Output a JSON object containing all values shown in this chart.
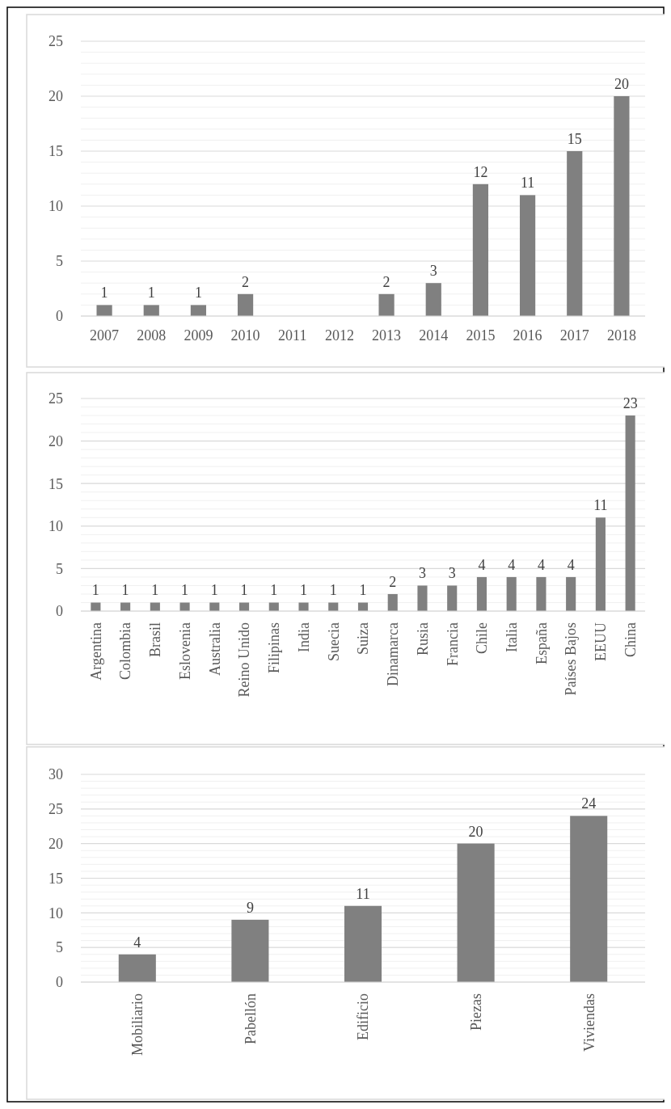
{
  "chart_data": [
    {
      "type": "bar",
      "categories": [
        "2007",
        "2008",
        "2009",
        "2010",
        "2011",
        "2012",
        "2013",
        "2014",
        "2015",
        "2016",
        "2017",
        "2018"
      ],
      "values": [
        1,
        1,
        1,
        2,
        0,
        0,
        2,
        3,
        12,
        11,
        15,
        20
      ],
      "value_labels": [
        "1",
        "1",
        "1",
        "2",
        null,
        null,
        "2",
        "3",
        "12",
        "11",
        "15",
        "20"
      ],
      "color": "#808080",
      "ylim": [
        0,
        25
      ],
      "yticks": [
        0,
        5,
        10,
        15,
        20,
        25
      ],
      "grid": "y"
    },
    {
      "type": "bar",
      "categories": [
        "Argentina",
        "Colombia",
        "Brasil",
        "Eslovenia",
        "Australia",
        "Reino Unido",
        "Filipinas",
        "India",
        "Suecia",
        "Suiza",
        "Dinamarca",
        "Rusia",
        "Francia",
        "Chile",
        "Italia",
        "España",
        "Países Bajos",
        "EEUU",
        "China"
      ],
      "values": [
        1,
        1,
        1,
        1,
        1,
        1,
        1,
        1,
        1,
        1,
        2,
        3,
        3,
        4,
        4,
        4,
        4,
        11,
        23
      ],
      "data_labels": true,
      "color": "#808080",
      "ylim": [
        0,
        25
      ],
      "yticks": [
        0,
        5,
        10,
        15,
        20,
        25
      ],
      "grid": "y"
    },
    {
      "type": "bar",
      "categories": [
        "Mobiliario",
        "Pabellón",
        "Edificio",
        "Piezas",
        "Viviendas"
      ],
      "values": [
        4,
        9,
        11,
        20,
        24
      ],
      "data_labels": true,
      "color": "#808080",
      "ylim": [
        0,
        30
      ],
      "yticks": [
        0,
        5,
        10,
        15,
        20,
        25,
        30
      ],
      "grid": "y"
    }
  ]
}
